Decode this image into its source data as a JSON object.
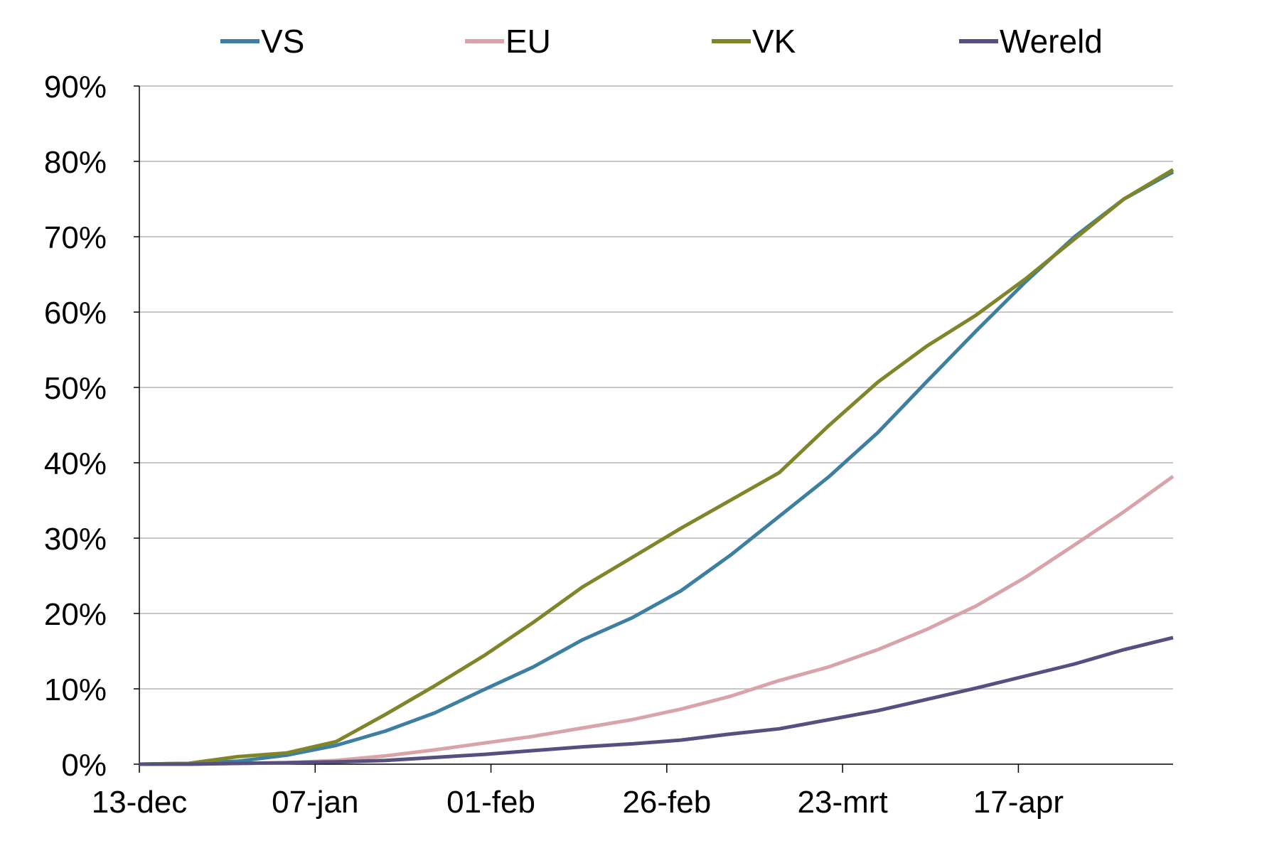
{
  "chart_data": {
    "type": "line",
    "title": "",
    "xlabel": "",
    "ylabel": "",
    "x_tick_labels": [
      "13-dec",
      "07-jan",
      "01-feb",
      "26-feb",
      "23-mrt",
      "17-apr"
    ],
    "x_tick_days": [
      0,
      25,
      50,
      75,
      100,
      125
    ],
    "x_range_days": [
      0,
      147
    ],
    "x_step_days": 7,
    "ylim": [
      0,
      90
    ],
    "y_ticks": [
      0,
      10,
      20,
      30,
      40,
      50,
      60,
      70,
      80,
      90
    ],
    "y_tick_labels": [
      "0%",
      "10%",
      "20%",
      "30%",
      "40%",
      "50%",
      "60%",
      "70%",
      "80%",
      "90%"
    ],
    "grid": "horizontal",
    "legend_position": "top",
    "series": [
      {
        "name": "VS",
        "color": "#3d7fa0",
        "values": [
          0,
          0.1,
          0.4,
          1.2,
          2.5,
          4.4,
          6.8,
          9.9,
          12.9,
          16.5,
          19.4,
          23.0,
          27.7,
          32.9,
          38.1,
          44.0,
          50.8,
          57.5,
          64.0,
          70.0,
          75.0,
          78.6
        ]
      },
      {
        "name": "EU",
        "color": "#d8a3a9",
        "values": [
          0,
          0,
          0.1,
          0.2,
          0.5,
          1.1,
          1.9,
          2.8,
          3.7,
          4.8,
          5.9,
          7.3,
          9.0,
          11.1,
          12.9,
          15.2,
          17.9,
          21.0,
          24.8,
          29.1,
          33.5,
          38.2
        ]
      },
      {
        "name": "VK",
        "color": "#7f8528",
        "values": [
          0,
          0.1,
          1.0,
          1.5,
          3.0,
          6.6,
          10.4,
          14.4,
          18.8,
          23.5,
          27.4,
          31.3,
          35.0,
          38.7,
          44.9,
          50.7,
          55.5,
          59.6,
          64.4,
          69.7,
          75.0,
          78.9
        ]
      },
      {
        "name": "Wereld",
        "color": "#545181",
        "values": [
          0,
          0,
          0.1,
          0.2,
          0.3,
          0.5,
          0.9,
          1.3,
          1.8,
          2.3,
          2.7,
          3.2,
          4.0,
          4.7,
          5.9,
          7.1,
          8.6,
          10.1,
          11.7,
          13.3,
          15.2,
          16.8
        ]
      }
    ]
  }
}
